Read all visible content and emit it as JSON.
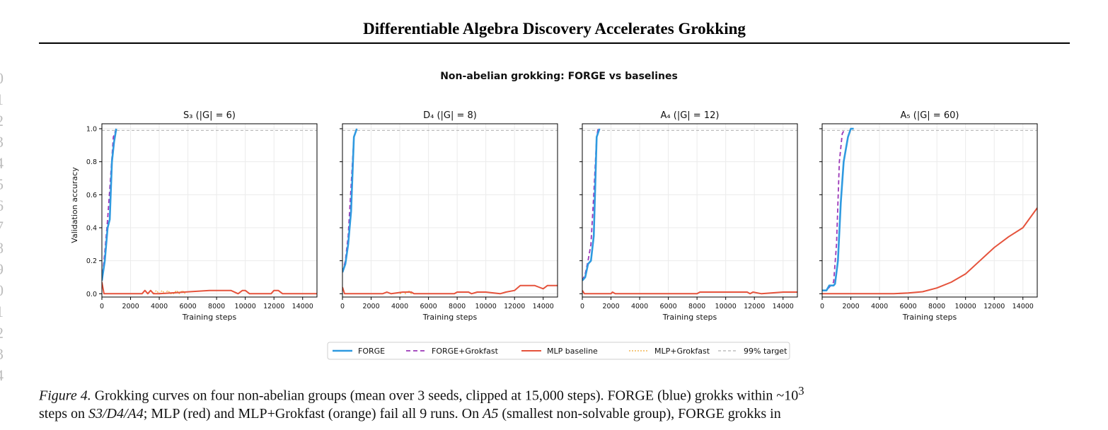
{
  "header": {
    "title": "Differentiable Algebra Discovery Accelerates Grokking"
  },
  "line_numbers": [
    "0",
    "1",
    "2",
    "3",
    "4",
    "5",
    "6",
    "7",
    "8",
    "9",
    "0",
    "1",
    "2",
    "3",
    "4"
  ],
  "figure": {
    "suptitle": "Non-abelian grokking: FORGE vs baselines",
    "ylabel": "Validation accuracy",
    "xlabel": "Training steps",
    "legend": [
      "FORGE",
      "FORGE+Grokfast",
      "MLP baseline",
      "MLP+Grokfast",
      "99% target"
    ]
  },
  "colors": {
    "forge": "#2f9ae0",
    "forge_grokfast": "#9b38b8",
    "mlp": "#e5533c",
    "mlp_grokfast": "#f0a830",
    "target": "#b0b0b0"
  },
  "chart_data": [
    {
      "type": "line",
      "title": "S₃  (|G| = 6)",
      "xlabel": "Training steps",
      "ylabel": "Validation accuracy",
      "xlim": [
        0,
        15000
      ],
      "ylim": [
        -0.02,
        1.03
      ],
      "xticks": [
        0,
        2000,
        4000,
        6000,
        8000,
        10000,
        12000,
        14000
      ],
      "yticks": [
        0.0,
        0.2,
        0.4,
        0.6,
        0.8,
        1.0
      ],
      "grid": true,
      "target": 0.99,
      "series": [
        {
          "name": "FORGE",
          "x": [
            0,
            200,
            400,
            550,
            700,
            850,
            1000
          ],
          "y": [
            0.08,
            0.2,
            0.4,
            0.45,
            0.8,
            0.92,
            1.0
          ]
        },
        {
          "name": "FORGE+Grokfast",
          "x": [
            0,
            200,
            400,
            600,
            800,
            1000
          ],
          "y": [
            0.08,
            0.25,
            0.45,
            0.7,
            0.95,
            1.0
          ]
        },
        {
          "name": "MLP baseline",
          "x": [
            0,
            150,
            400,
            2800,
            3000,
            3200,
            3400,
            3600,
            4000,
            7500,
            8000,
            9000,
            9500,
            9800,
            10000,
            10300,
            11800,
            12000,
            12300,
            12600,
            15000
          ],
          "y": [
            0.07,
            0.0,
            0.0,
            0.0,
            0.02,
            0.0,
            0.02,
            0.0,
            0.0,
            0.02,
            0.02,
            0.02,
            0.0,
            0.02,
            0.02,
            0.0,
            0.0,
            0.02,
            0.02,
            0.0,
            0.0
          ]
        },
        {
          "name": "MLP+Grokfast",
          "x": [
            3600,
            3800,
            4000,
            4200,
            4400,
            4600,
            4800,
            5000,
            5200,
            5400,
            5600,
            5800
          ],
          "y": [
            0.0,
            0.02,
            0.0,
            0.02,
            0.0,
            0.02,
            0.0,
            0.0,
            0.02,
            0.0,
            0.02,
            0.0
          ]
        }
      ]
    },
    {
      "type": "line",
      "title": "D₄  (|G| = 8)",
      "xlabel": "Training steps",
      "xlim": [
        0,
        15000
      ],
      "ylim": [
        -0.02,
        1.03
      ],
      "xticks": [
        0,
        2000,
        4000,
        6000,
        8000,
        10000,
        12000,
        14000
      ],
      "yticks": [
        0.0,
        0.2,
        0.4,
        0.6,
        0.8,
        1.0
      ],
      "grid": true,
      "target": 0.99,
      "series": [
        {
          "name": "FORGE",
          "x": [
            0,
            200,
            400,
            600,
            800,
            1000
          ],
          "y": [
            0.13,
            0.18,
            0.3,
            0.5,
            0.95,
            1.0
          ]
        },
        {
          "name": "FORGE+Grokfast",
          "x": [
            0,
            200,
            400,
            600,
            800,
            1000
          ],
          "y": [
            0.13,
            0.2,
            0.35,
            0.65,
            0.95,
            1.0
          ]
        },
        {
          "name": "MLP baseline",
          "x": [
            0,
            150,
            2800,
            3100,
            3400,
            4200,
            4400,
            4800,
            5000,
            7800,
            8000,
            8800,
            9000,
            9400,
            10000,
            11000,
            11400,
            12000,
            12400,
            13400,
            13700,
            14000,
            14300,
            15000
          ],
          "y": [
            0.04,
            0.0,
            0.0,
            0.01,
            0.0,
            0.01,
            0.01,
            0.01,
            0.0,
            0.0,
            0.01,
            0.01,
            0.0,
            0.01,
            0.01,
            0.0,
            0.01,
            0.02,
            0.05,
            0.05,
            0.04,
            0.03,
            0.05,
            0.05
          ]
        },
        {
          "name": "MLP+Grokfast",
          "x": [
            4000,
            4200,
            4400,
            4600,
            4800,
            5000
          ],
          "y": [
            0.0,
            0.01,
            0.0,
            0.02,
            0.0,
            0.0
          ]
        }
      ]
    },
    {
      "type": "line",
      "title": "A₄  (|G| = 12)",
      "xlabel": "Training steps",
      "xlim": [
        0,
        15000
      ],
      "ylim": [
        -0.02,
        1.03
      ],
      "xticks": [
        0,
        2000,
        4000,
        6000,
        8000,
        10000,
        12000,
        14000
      ],
      "yticks": [
        0.0,
        0.2,
        0.4,
        0.6,
        0.8,
        1.0
      ],
      "grid": true,
      "target": 0.99,
      "series": [
        {
          "name": "FORGE",
          "x": [
            0,
            200,
            400,
            600,
            800,
            1000,
            1200
          ],
          "y": [
            0.08,
            0.1,
            0.18,
            0.2,
            0.35,
            0.95,
            1.0
          ]
        },
        {
          "name": "FORGE+Grokfast",
          "x": [
            0,
            200,
            400,
            600,
            800,
            1000,
            1100
          ],
          "y": [
            0.08,
            0.12,
            0.2,
            0.3,
            0.6,
            0.95,
            1.0
          ]
        },
        {
          "name": "MLP baseline",
          "x": [
            0,
            150,
            2000,
            2100,
            2300,
            8000,
            8200,
            10000,
            10500,
            11500,
            11700,
            11900,
            12500,
            14000,
            15000
          ],
          "y": [
            0.02,
            0.0,
            0.0,
            0.01,
            0.0,
            0.0,
            0.01,
            0.01,
            0.01,
            0.01,
            0.0,
            0.01,
            0.0,
            0.01,
            0.01
          ]
        }
      ]
    },
    {
      "type": "line",
      "title": "A₅  (|G| = 60)",
      "xlabel": "Training steps",
      "xlim": [
        0,
        15000
      ],
      "ylim": [
        -0.02,
        1.03
      ],
      "xticks": [
        0,
        2000,
        4000,
        6000,
        8000,
        10000,
        12000,
        14000
      ],
      "yticks": [
        0.0,
        0.2,
        0.4,
        0.6,
        0.8,
        1.0
      ],
      "grid": true,
      "target": 0.99,
      "series": [
        {
          "name": "FORGE",
          "x": [
            0,
            300,
            500,
            800,
            900,
            1100,
            1300,
            1500,
            1800,
            2000,
            2200
          ],
          "y": [
            0.02,
            0.02,
            0.05,
            0.05,
            0.06,
            0.2,
            0.55,
            0.8,
            0.95,
            1.0,
            1.0
          ]
        },
        {
          "name": "FORGE+Grokfast",
          "x": [
            0,
            300,
            600,
            800,
            1000,
            1200,
            1400,
            1600
          ],
          "y": [
            0.02,
            0.02,
            0.05,
            0.07,
            0.3,
            0.8,
            0.97,
            1.0
          ]
        },
        {
          "name": "MLP baseline",
          "x": [
            0,
            2000,
            4000,
            5000,
            6000,
            7000,
            8000,
            9000,
            10000,
            11000,
            12000,
            13000,
            14000,
            15000
          ],
          "y": [
            0.0,
            0.0,
            0.0,
            0.0,
            0.005,
            0.012,
            0.035,
            0.07,
            0.12,
            0.2,
            0.28,
            0.345,
            0.4,
            0.52
          ]
        }
      ]
    }
  ],
  "caption": {
    "label": "Figure 4.",
    "line1_text": " Grokking curves on four non-abelian groups (mean over 3 seeds, clipped at 15,000 steps). FORGE (blue) grokks within ~10",
    "line1_sup": "3",
    "line2_a": "steps on ",
    "line2_math": "S3/D4/A4",
    "line2_b": "; MLP (red) and MLP+Grokfast (orange) fail all 9 runs. On ",
    "line2_math2": "A5",
    "line2_c": " (smallest non-solvable group), FORGE grokks in"
  }
}
